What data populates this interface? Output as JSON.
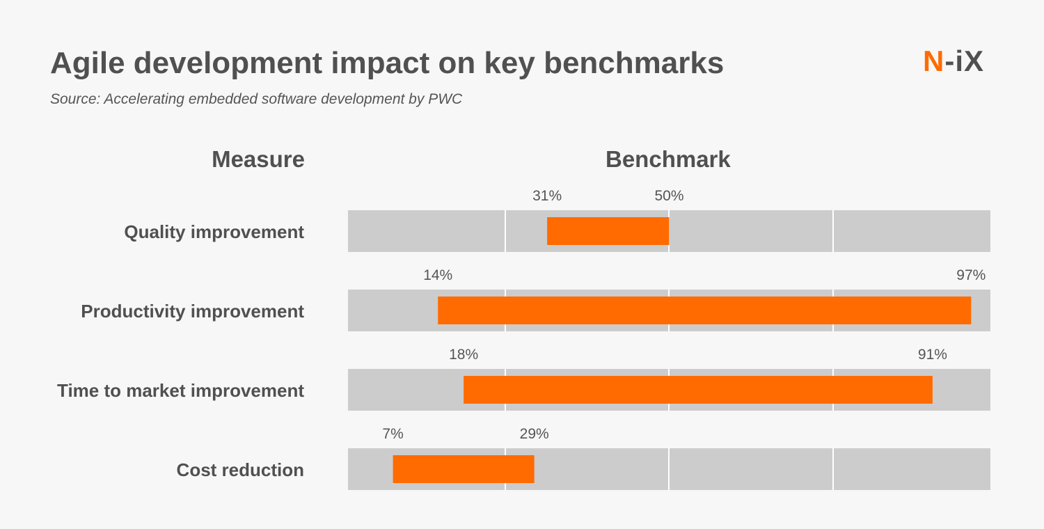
{
  "title": "Agile development impact on key benchmarks",
  "subtitle": "Source: Accelerating embedded software development by PWC",
  "logo": {
    "text": "N-iX",
    "accent": "#ff6b00"
  },
  "headers": {
    "measure": "Measure",
    "benchmark": "Benchmark"
  },
  "colors": {
    "bar": "#ff6b00",
    "track": "#cccccc",
    "background": "#f7f7f7"
  },
  "chart_data": {
    "type": "bar",
    "orientation": "horizontal-range",
    "categories": [
      "Quality improvement",
      "Productivity improvement",
      "Time to market improvement",
      "Cost reduction"
    ],
    "ranges": [
      [
        31,
        50
      ],
      [
        14,
        97
      ],
      [
        18,
        91
      ],
      [
        7,
        29
      ]
    ],
    "labels": [
      [
        "31%",
        "50%"
      ],
      [
        "14%",
        "97%"
      ],
      [
        "18%",
        "91%"
      ],
      [
        "7%",
        "29%"
      ]
    ],
    "xlim": [
      0,
      100
    ],
    "grid": true
  }
}
